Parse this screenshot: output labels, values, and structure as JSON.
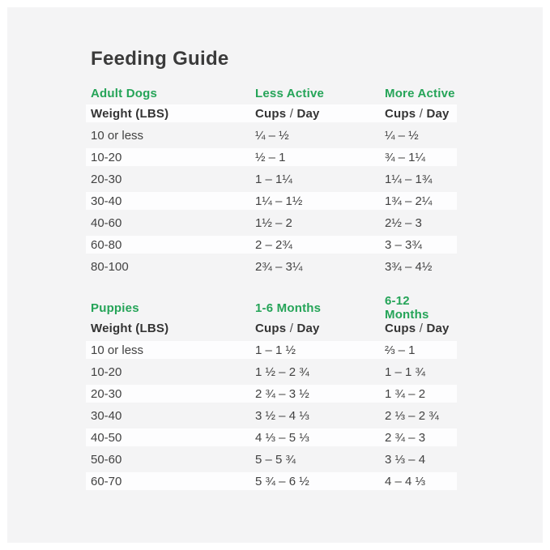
{
  "page": {
    "title": "Feeding Guide"
  },
  "colors": {
    "accent_green": "#25a458",
    "page_background": "#f4f4f5",
    "row_stripe": "#fdfdfe",
    "title_text": "#3b3b3b",
    "body_text": "#424242"
  },
  "tables": [
    {
      "section_label": "Adult Dogs",
      "col2_label": "Less Active",
      "col3_label": "More Active",
      "weight_header": "Weight (LBS)",
      "cups_header": {
        "cups": "Cups",
        "sep": "/",
        "day": "Day"
      },
      "rows": [
        {
          "weight": "10 or less",
          "col2": "¼ – ½",
          "col3": "¼ – ½"
        },
        {
          "weight": "10-20",
          "col2": "½ – 1",
          "col3": "¾ – 1¼"
        },
        {
          "weight": "20-30",
          "col2": "1 – 1¼",
          "col3": "1¼ – 1¾"
        },
        {
          "weight": "30-40",
          "col2": "1¼ – 1½",
          "col3": "1¾ – 2¼"
        },
        {
          "weight": "40-60",
          "col2": "1½ – 2",
          "col3": "2½ – 3"
        },
        {
          "weight": "60-80",
          "col2": "2 – 2¾",
          "col3": "3 – 3¾"
        },
        {
          "weight": "80-100",
          "col2": "2¾ – 3¼",
          "col3": "3¾ – 4½"
        }
      ]
    },
    {
      "section_label": "Puppies",
      "col2_label": "1-6 Months",
      "col3_label": "6-12 Months",
      "weight_header": "Weight (LBS)",
      "cups_header": {
        "cups": "Cups",
        "sep": "/",
        "day": "Day"
      },
      "rows": [
        {
          "weight": "10 or less",
          "col2": "1 – 1 ½",
          "col3": "⅔ – 1"
        },
        {
          "weight": "10-20",
          "col2": "1 ½ – 2 ¾",
          "col3": "1 – 1 ¾"
        },
        {
          "weight": "20-30",
          "col2": "2 ¾ – 3 ½",
          "col3": "1 ¾ – 2"
        },
        {
          "weight": "30-40",
          "col2": "3 ½ – 4 ⅓",
          "col3": "2 ⅓ – 2 ¾"
        },
        {
          "weight": "40-50",
          "col2": "4 ⅓ – 5 ⅓",
          "col3": "2 ¾ – 3"
        },
        {
          "weight": "50-60",
          "col2": "5 – 5 ¾",
          "col3": "3 ⅓ – 4"
        },
        {
          "weight": "60-70",
          "col2": "5 ¾ – 6 ½",
          "col3": "4 – 4 ⅓"
        }
      ]
    }
  ]
}
